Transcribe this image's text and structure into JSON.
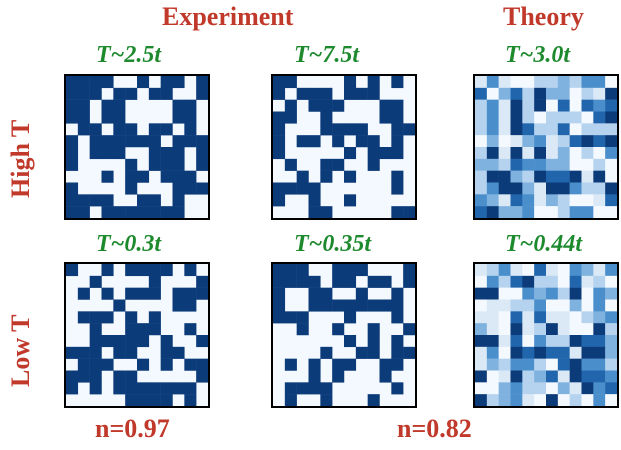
{
  "headers": {
    "experiment": "Experiment",
    "theory": "Theory"
  },
  "rows": {
    "high": "High T",
    "low": "Low T"
  },
  "temps": {
    "exp_high_1": "T~2.5t",
    "exp_high_2": "T~7.5t",
    "theory_high": "T~3.0t",
    "exp_low_1": "T~0.3t",
    "exp_low_2": "T~0.35t",
    "theory_low": "T~0.44t"
  },
  "footers": {
    "n1": "n=0.97",
    "n2": "n=0.82"
  },
  "colors": {
    "dark": "#0c3b7a",
    "light": "#f4f9ff",
    "header": "#c0392b",
    "temp": "#1e8a2e"
  }
}
